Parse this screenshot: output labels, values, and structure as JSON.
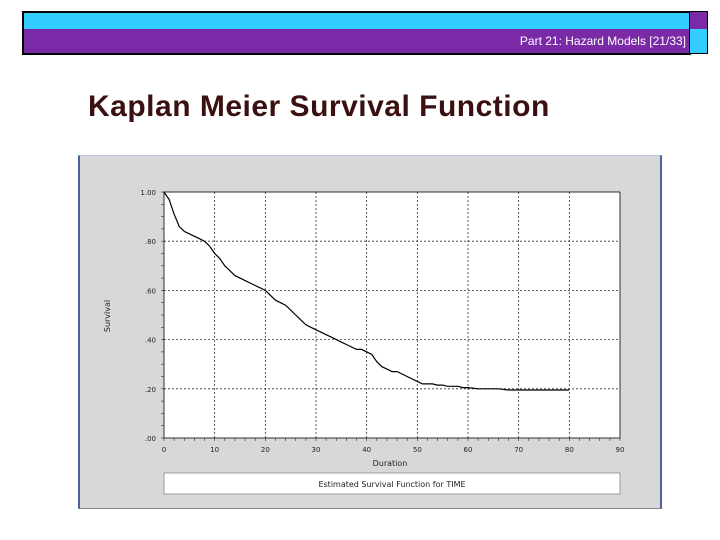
{
  "header": {
    "part_label": "Part 21: Hazard Models [21/33]"
  },
  "slide": {
    "title": "Kaplan Meier Survival Function"
  },
  "chart_data": {
    "type": "line",
    "title": "",
    "xlabel": "Duration",
    "ylabel": "Survival",
    "xlim": [
      0,
      90
    ],
    "ylim": [
      0,
      1
    ],
    "grid": true,
    "x_ticks": [
      "0",
      "10",
      "20",
      "30",
      "40",
      "50",
      "60",
      "70",
      "80",
      "90"
    ],
    "y_ticks": [
      ".00",
      ".20",
      ".40",
      ".60",
      ".80",
      "1.00"
    ],
    "legend": "Estimated Survival Function for TIME",
    "series": [
      {
        "x": [
          0,
          1,
          2,
          3,
          4,
          5,
          6,
          7,
          8,
          9,
          10,
          11,
          12,
          13,
          14,
          15,
          16,
          17,
          18,
          19,
          20,
          21,
          22,
          23,
          24,
          25,
          26,
          27,
          28,
          29,
          30,
          31,
          32,
          33,
          34,
          35,
          36,
          37,
          38,
          39,
          40,
          41,
          42,
          43,
          44,
          45,
          46,
          47,
          48,
          49,
          50,
          51,
          52,
          53,
          54,
          55,
          56,
          57,
          58,
          59,
          60,
          62,
          64,
          66,
          68,
          70,
          72,
          74,
          76,
          78,
          80
        ],
        "y": [
          1.0,
          0.97,
          0.91,
          0.86,
          0.84,
          0.83,
          0.82,
          0.81,
          0.8,
          0.78,
          0.75,
          0.73,
          0.7,
          0.68,
          0.66,
          0.65,
          0.64,
          0.63,
          0.62,
          0.61,
          0.6,
          0.58,
          0.56,
          0.55,
          0.54,
          0.52,
          0.5,
          0.48,
          0.46,
          0.45,
          0.44,
          0.43,
          0.42,
          0.41,
          0.4,
          0.39,
          0.38,
          0.37,
          0.36,
          0.36,
          0.35,
          0.34,
          0.31,
          0.29,
          0.28,
          0.27,
          0.27,
          0.26,
          0.25,
          0.24,
          0.23,
          0.22,
          0.22,
          0.22,
          0.215,
          0.215,
          0.21,
          0.21,
          0.21,
          0.205,
          0.205,
          0.2,
          0.2,
          0.2,
          0.195,
          0.195,
          0.195,
          0.195,
          0.195,
          0.195,
          0.195
        ]
      }
    ]
  }
}
